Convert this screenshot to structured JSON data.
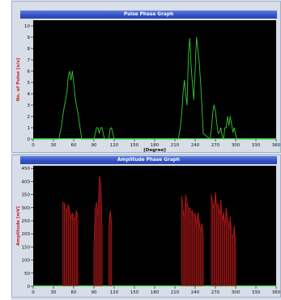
{
  "charts": {
    "pulse": {
      "title": "Pulse Phase Graph",
      "xlabel": "[Degree]",
      "ylabel": "No. of Pulse [n/s]"
    },
    "amplitude": {
      "title": "Amplitude Phase Graph",
      "xlabel": "",
      "ylabel": "Amplitude [mV]"
    }
  },
  "chart_data": [
    {
      "type": "line",
      "title": "Pulse Phase Graph",
      "xlabel": "[Degree]",
      "ylabel": "No. of Pulse [n/s]",
      "xlim": [
        0,
        360
      ],
      "ylim": [
        0,
        10.5
      ],
      "xticks": [
        0,
        30,
        60,
        90,
        120,
        150,
        180,
        210,
        240,
        270,
        300,
        330,
        360
      ],
      "yticks": [
        0,
        1,
        2,
        3,
        4,
        5,
        6,
        7,
        8,
        9,
        10
      ],
      "grid": false,
      "line_color": "#33cc33",
      "background": "#000000",
      "series": [
        {
          "x": [
            0,
            38,
            42,
            45,
            48,
            50,
            52,
            54,
            56,
            58,
            60,
            62,
            64,
            66,
            68,
            70,
            72,
            90,
            92,
            94,
            96,
            98,
            100,
            102,
            104,
            106,
            108,
            110,
            112,
            114,
            116,
            118,
            120,
            215,
            218,
            220,
            222,
            224,
            226,
            228,
            230,
            232,
            234,
            236,
            238,
            240,
            242,
            244,
            246,
            248,
            250,
            252,
            262,
            264,
            266,
            268,
            270,
            272,
            274,
            276,
            278,
            280,
            282,
            284,
            286,
            288,
            290,
            292,
            294,
            296,
            298,
            300,
            302,
            304,
            306,
            360
          ],
          "y": [
            0,
            0,
            1.2,
            2.5,
            3.5,
            4.2,
            5.5,
            6.0,
            5.2,
            6.0,
            5.0,
            3.8,
            3.0,
            2.4,
            1.6,
            0.8,
            0,
            0,
            0.5,
            1.0,
            1.0,
            0.5,
            1.0,
            1.0,
            0.4,
            0,
            0,
            0,
            0,
            0.9,
            1.0,
            0.5,
            0,
            0,
            1.0,
            2.2,
            4.0,
            5.2,
            4.0,
            3.0,
            7.4,
            8.9,
            6.5,
            4.8,
            3.5,
            6.2,
            9.0,
            8.0,
            6.8,
            5.0,
            3.0,
            0.5,
            0,
            0.8,
            2.3,
            3.0,
            2.5,
            1.4,
            0.5,
            0.6,
            1.0,
            0.3,
            0,
            1.0,
            1.0,
            2.0,
            1.2,
            2.0,
            1.3,
            0.6,
            1.0,
            0.4,
            0,
            0,
            0,
            0
          ]
        }
      ]
    },
    {
      "type": "bar",
      "title": "Amplitude Phase Graph",
      "xlabel": "",
      "ylabel": "Amplitude [mV]",
      "xlim": [
        0,
        360
      ],
      "ylim": [
        0,
        460
      ],
      "xticks": [
        0,
        30,
        60,
        90,
        120,
        150,
        180,
        210,
        240,
        270,
        300,
        330,
        360
      ],
      "yticks": [
        0,
        50,
        100,
        150,
        200,
        250,
        300,
        350,
        400,
        450
      ],
      "grid": false,
      "line_color": "#b01818",
      "background": "#000000",
      "series": [
        {
          "x": [
            44,
            46,
            48,
            50,
            52,
            54,
            56,
            58,
            60,
            62,
            64,
            66,
            90,
            92,
            94,
            96,
            98,
            100,
            102,
            112,
            114,
            116,
            220,
            222,
            224,
            226,
            228,
            230,
            232,
            234,
            236,
            238,
            240,
            242,
            244,
            246,
            248,
            250,
            252,
            264,
            266,
            268,
            270,
            272,
            274,
            276,
            278,
            280,
            282,
            284,
            286,
            288,
            290,
            292,
            294,
            296,
            298,
            300
          ],
          "y": [
            320,
            318,
            300,
            285,
            312,
            290,
            260,
            280,
            265,
            250,
            290,
            270,
            150,
            300,
            320,
            260,
            420,
            395,
            230,
            215,
            290,
            250,
            345,
            300,
            255,
            350,
            320,
            295,
            300,
            280,
            290,
            265,
            280,
            230,
            280,
            255,
            205,
            240,
            190,
            350,
            320,
            290,
            360,
            300,
            315,
            265,
            330,
            245,
            285,
            230,
            300,
            265,
            215,
            265,
            200,
            185,
            230,
            150
          ]
        }
      ]
    }
  ]
}
